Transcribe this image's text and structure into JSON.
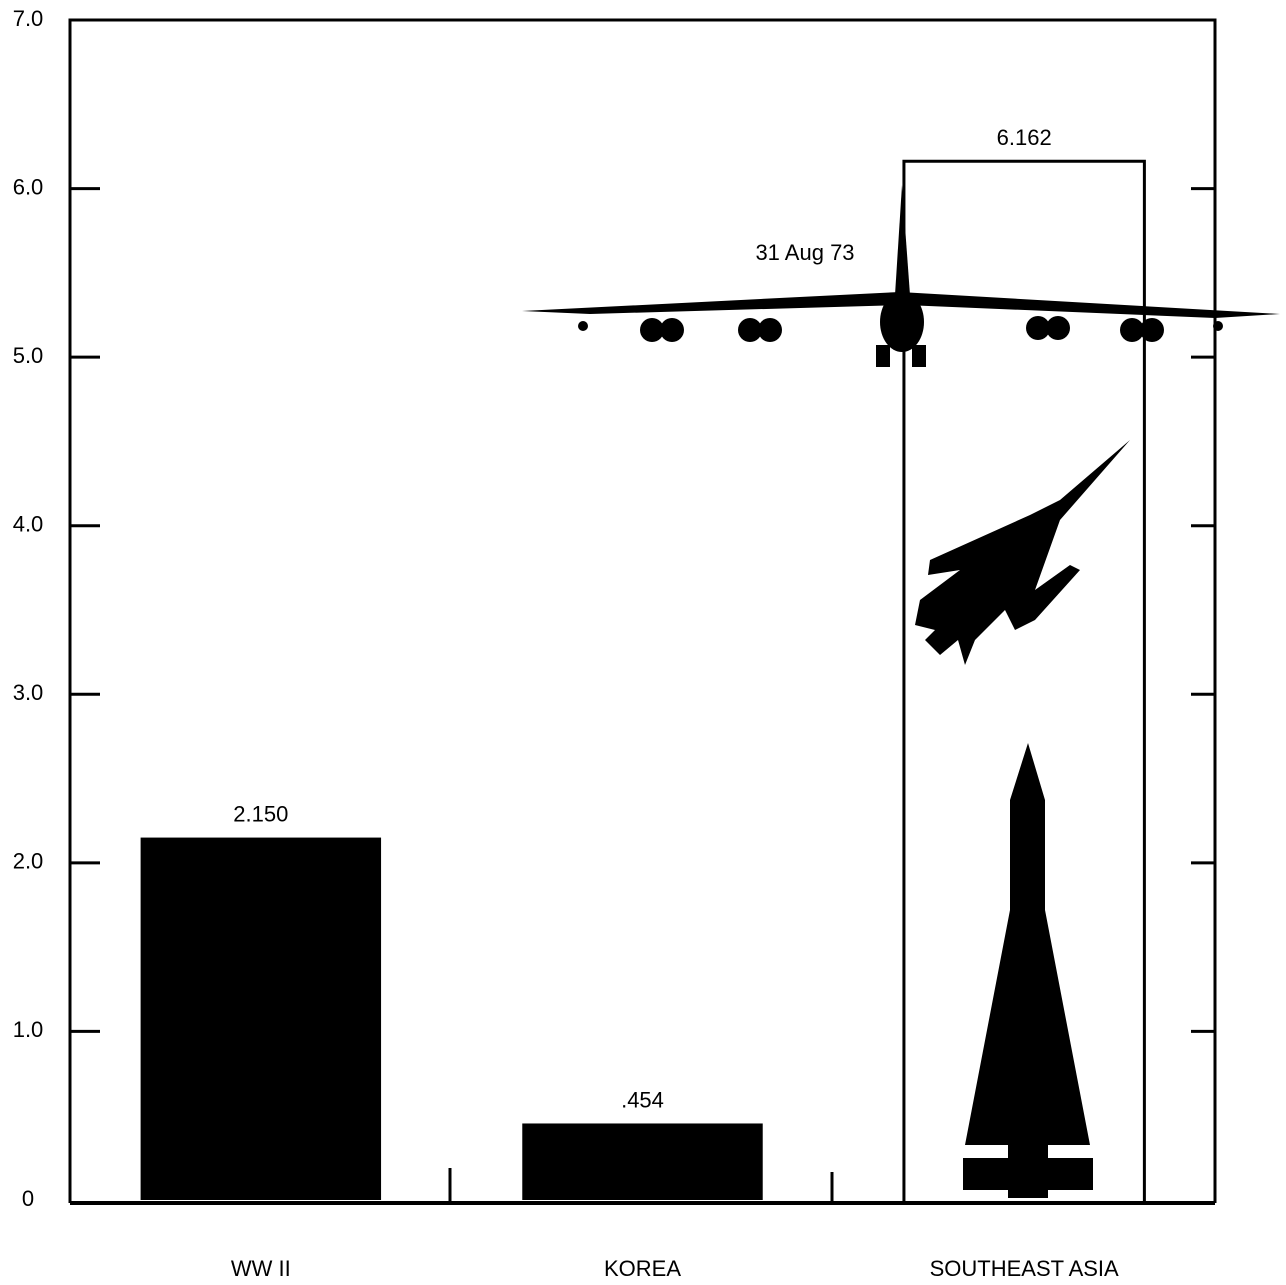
{
  "chart_data": {
    "type": "bar",
    "categories": [
      "WW II",
      "KOREA",
      "SOUTHEAST ASIA"
    ],
    "values": [
      2.15,
      0.454,
      6.162
    ],
    "value_labels": [
      "2.150",
      ".454",
      "6.162"
    ],
    "bar_styles": [
      "filled",
      "filled",
      "outline"
    ],
    "color": "#000000",
    "annotation": "31 Aug 73",
    "ylim": [
      0,
      7
    ],
    "yticks": [
      0,
      {
        "value": 1,
        "label": "1.0"
      },
      {
        "value": 2,
        "label": "2.0"
      },
      {
        "value": 3,
        "label": "3.0"
      },
      {
        "value": 4,
        "label": "4.0"
      },
      {
        "value": 5,
        "label": "5.0"
      },
      {
        "value": 6,
        "label": "6.0"
      },
      {
        "value": 7,
        "label": "7.0"
      }
    ],
    "grid": false
  }
}
